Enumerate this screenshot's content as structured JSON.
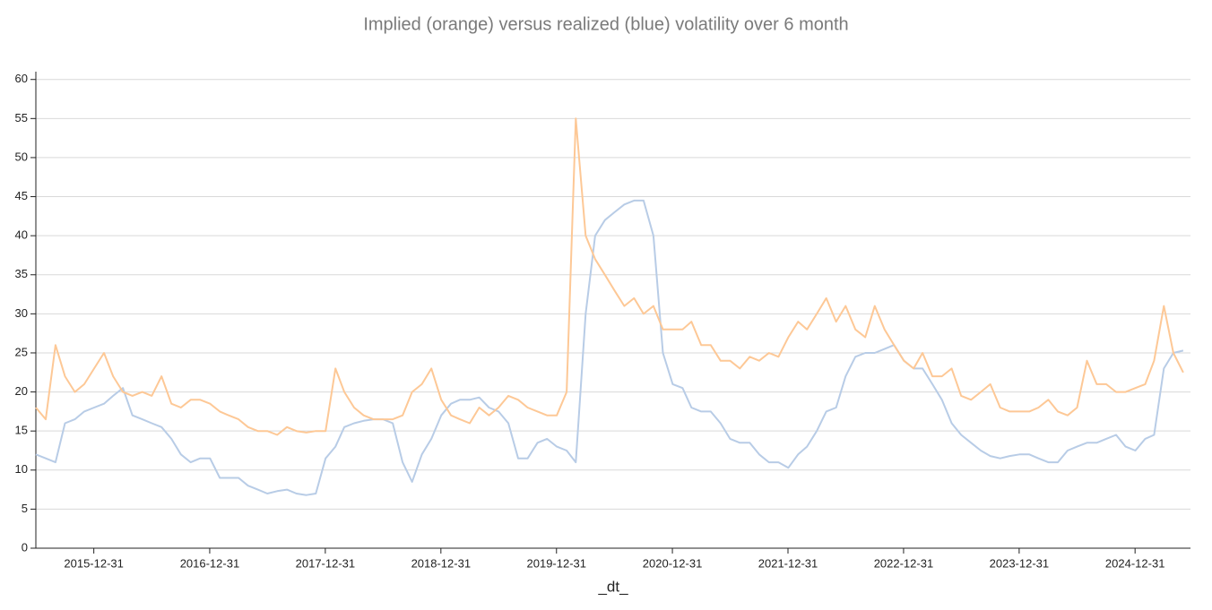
{
  "chart_data": {
    "type": "line",
    "title": "Implied (orange) versus realized (blue) volatility over 6 month",
    "x_label": "_dt_",
    "x": [
      "2015-07-01",
      "2015-08-01",
      "2015-09-01",
      "2015-10-01",
      "2015-11-01",
      "2015-12-01",
      "2016-01-01",
      "2016-02-01",
      "2016-03-01",
      "2016-04-01",
      "2016-05-01",
      "2016-06-01",
      "2016-07-01",
      "2016-08-01",
      "2016-09-01",
      "2016-10-01",
      "2016-11-01",
      "2016-12-01",
      "2017-01-01",
      "2017-02-01",
      "2017-03-01",
      "2017-04-01",
      "2017-05-01",
      "2017-06-01",
      "2017-07-01",
      "2017-08-01",
      "2017-09-01",
      "2017-10-01",
      "2017-11-01",
      "2017-12-01",
      "2018-01-01",
      "2018-02-01",
      "2018-03-01",
      "2018-04-01",
      "2018-05-01",
      "2018-06-01",
      "2018-07-01",
      "2018-08-01",
      "2018-09-01",
      "2018-10-01",
      "2018-11-01",
      "2018-12-01",
      "2019-01-01",
      "2019-02-01",
      "2019-03-01",
      "2019-04-01",
      "2019-05-01",
      "2019-06-01",
      "2019-07-01",
      "2019-08-01",
      "2019-09-01",
      "2019-10-01",
      "2019-11-01",
      "2019-12-01",
      "2020-01-01",
      "2020-02-01",
      "2020-03-01",
      "2020-04-01",
      "2020-05-01",
      "2020-06-01",
      "2020-07-01",
      "2020-08-01",
      "2020-09-01",
      "2020-10-01",
      "2020-11-01",
      "2020-12-01",
      "2021-01-01",
      "2021-02-01",
      "2021-03-01",
      "2021-04-01",
      "2021-05-01",
      "2021-06-01",
      "2021-07-01",
      "2021-08-01",
      "2021-09-01",
      "2021-10-01",
      "2021-11-01",
      "2021-12-01",
      "2022-01-01",
      "2022-02-01",
      "2022-03-01",
      "2022-04-01",
      "2022-05-01",
      "2022-06-01",
      "2022-07-01",
      "2022-08-01",
      "2022-09-01",
      "2022-10-01",
      "2022-11-01",
      "2022-12-01",
      "2023-01-01",
      "2023-02-01",
      "2023-03-01",
      "2023-04-01",
      "2023-05-01",
      "2023-06-01",
      "2023-07-01",
      "2023-08-01",
      "2023-09-01",
      "2023-10-01",
      "2023-11-01",
      "2023-12-01",
      "2024-01-01",
      "2024-02-01",
      "2024-03-01",
      "2024-04-01",
      "2024-05-01",
      "2024-06-01",
      "2024-07-01",
      "2024-08-01",
      "2024-09-01",
      "2024-10-01",
      "2024-11-01",
      "2024-12-01",
      "2025-01-01",
      "2025-02-01",
      "2025-03-01",
      "2025-04-01",
      "2025-05-01",
      "2025-06-01"
    ],
    "series": [
      {
        "color": "#fdc896",
        "values": [
          18,
          16.5,
          26,
          22,
          20,
          21,
          23,
          25,
          22,
          20,
          19.5,
          20,
          19.5,
          22,
          18.5,
          18,
          19,
          19,
          18.5,
          17.5,
          17,
          16.5,
          15.5,
          15,
          15,
          14.5,
          15.5,
          15,
          14.8,
          15,
          15,
          23,
          20,
          18,
          17,
          16.5,
          16.5,
          16.5,
          17,
          20,
          21,
          23,
          19,
          17,
          16.5,
          16,
          18,
          17,
          18,
          19.5,
          19,
          18,
          17.5,
          17,
          17,
          20,
          55,
          40,
          37,
          35,
          33,
          31,
          32,
          30,
          31,
          28,
          28,
          28,
          29,
          26,
          26,
          24,
          24,
          23,
          24.5,
          24,
          25,
          24.5,
          27,
          29,
          28,
          30,
          32,
          29,
          31,
          28,
          27,
          31,
          28,
          26,
          24,
          23,
          25,
          22,
          22,
          23,
          19.5,
          19,
          20,
          21,
          18,
          17.5,
          17.5,
          17.5,
          18,
          19,
          17.5,
          17,
          18,
          24,
          21,
          21,
          20,
          20,
          20.5,
          21,
          24,
          31,
          25,
          22.5
        ]
      },
      {
        "color": "#b8cce6",
        "values": [
          12,
          11.5,
          11,
          16,
          16.5,
          17.5,
          18,
          18.5,
          19.5,
          20.5,
          17,
          16.5,
          16,
          15.5,
          14,
          12,
          11,
          11.5,
          11.5,
          9,
          9,
          9,
          8,
          7.5,
          7,
          7.3,
          7.5,
          7,
          6.8,
          7,
          11.5,
          13,
          15.5,
          16,
          16.3,
          16.5,
          16.5,
          16,
          11,
          8.5,
          12,
          14,
          17,
          18.5,
          19,
          19,
          19.3,
          18,
          17.5,
          16,
          11.5,
          11.5,
          13.5,
          14,
          13,
          12.5,
          11,
          30,
          40,
          42,
          43,
          44,
          44.5,
          44.5,
          40,
          25,
          21,
          20.5,
          18,
          17.5,
          17.5,
          16,
          14,
          13.5,
          13.5,
          12,
          11,
          11,
          10.3,
          12,
          13,
          15,
          17.5,
          18,
          22,
          24.5,
          25,
          25,
          25.5,
          26,
          24,
          23,
          23,
          21,
          19,
          16,
          14.5,
          13.5,
          12.5,
          11.8,
          11.5,
          11.8,
          12,
          12,
          11.5,
          11,
          11,
          12.5,
          13,
          13.5,
          13.5,
          14,
          14.5,
          13,
          12.5,
          14,
          14.5,
          23,
          25,
          25.3
        ]
      }
    ],
    "xlim": [
      "2015-07-01",
      "2025-06-24"
    ],
    "xticks": [
      "2015-12-31",
      "2016-12-31",
      "2017-12-31",
      "2018-12-31",
      "2019-12-31",
      "2020-12-31",
      "2021-12-31",
      "2022-12-31",
      "2023-12-31",
      "2024-12-31"
    ],
    "ylim": [
      0,
      61
    ],
    "yticks": [
      0,
      5,
      10,
      15,
      20,
      25,
      30,
      35,
      40,
      45,
      50,
      55,
      60
    ],
    "grid": true
  }
}
